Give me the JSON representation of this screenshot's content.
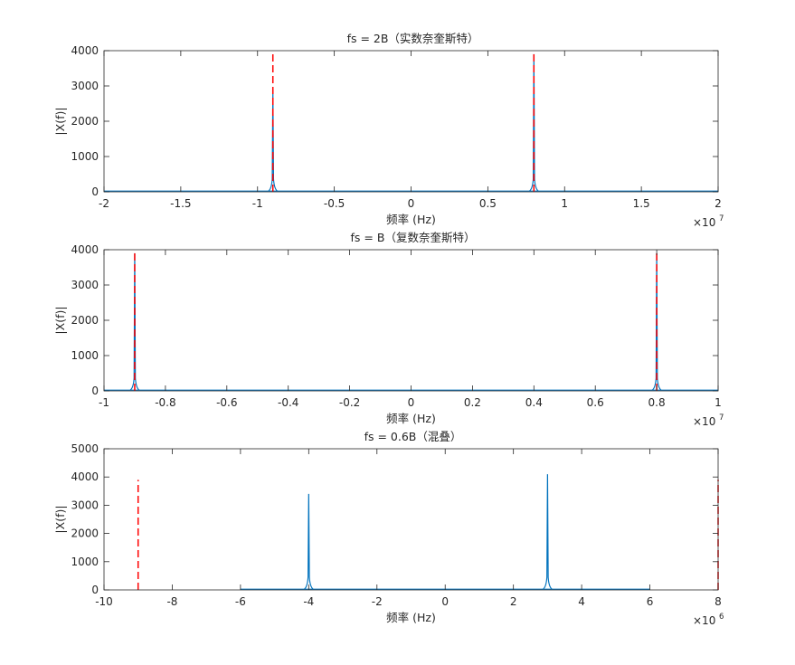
{
  "chart_data": [
    {
      "type": "line",
      "title": "fs = 2B（实数奈奎斯特）",
      "xlabel": "频率 (Hz)",
      "ylabel": "|X(f)|",
      "xlim": [
        -2,
        2
      ],
      "ylim": [
        0,
        4000
      ],
      "x_multiplier_base": "×10",
      "x_multiplier_exp": "7",
      "xticks": [
        -2,
        -1.5,
        -1,
        -0.5,
        0,
        0.5,
        1,
        1.5,
        2
      ],
      "xtick_labels": [
        "-2",
        "-1.5",
        "-1",
        "-0.5",
        "0",
        "0.5",
        "1",
        "1.5",
        "2"
      ],
      "yticks": [
        0,
        1000,
        2000,
        3000,
        4000
      ],
      "ytick_labels": [
        "0",
        "1000",
        "2000",
        "3000",
        "4000"
      ],
      "spectrum_range": [
        -2,
        2
      ],
      "spectrum_peaks": [
        {
          "x": -0.9,
          "y": 2900
        },
        {
          "x": 0.8,
          "y": 3900
        }
      ],
      "reference_lines": [
        {
          "x": -0.9,
          "y": 4000
        },
        {
          "x": 0.8,
          "y": 4000
        }
      ],
      "grid": false,
      "colors": {
        "spectrum": "#0072BD",
        "reference": "#ff0000",
        "axes": "#262626"
      }
    },
    {
      "type": "line",
      "title": "fs = B（复数奈奎斯特）",
      "xlabel": "频率 (Hz)",
      "ylabel": "|X(f)|",
      "xlim": [
        -1,
        1
      ],
      "ylim": [
        0,
        4000
      ],
      "x_multiplier_base": "×10",
      "x_multiplier_exp": "7",
      "xticks": [
        -1,
        -0.8,
        -0.6,
        -0.4,
        -0.2,
        0,
        0.2,
        0.4,
        0.6,
        0.8,
        1
      ],
      "xtick_labels": [
        "-1",
        "-0.8",
        "-0.6",
        "-0.4",
        "-0.2",
        "0",
        "0.2",
        "0.4",
        "0.6",
        "0.8",
        "1"
      ],
      "yticks": [
        0,
        1000,
        2000,
        3000,
        4000
      ],
      "ytick_labels": [
        "0",
        "1000",
        "2000",
        "3000",
        "4000"
      ],
      "spectrum_range": [
        -1,
        1
      ],
      "spectrum_peaks": [
        {
          "x": -0.9,
          "y": 3900
        },
        {
          "x": 0.8,
          "y": 3900
        }
      ],
      "reference_lines": [
        {
          "x": -0.9,
          "y": 3900
        },
        {
          "x": 0.8,
          "y": 4000
        }
      ],
      "grid": false,
      "colors": {
        "spectrum": "#0072BD",
        "reference": "#ff0000",
        "axes": "#262626"
      }
    },
    {
      "type": "line",
      "title": "fs = 0.6B（混叠）",
      "xlabel": "频率 (Hz)",
      "ylabel": "|X(f)|",
      "xlim": [
        -10,
        8
      ],
      "ylim": [
        0,
        5000
      ],
      "x_multiplier_base": "×10",
      "x_multiplier_exp": "6",
      "xticks": [
        -10,
        -8,
        -6,
        -4,
        -2,
        0,
        2,
        4,
        6,
        8
      ],
      "xtick_labels": [
        "-10",
        "-8",
        "-6",
        "-4",
        "-2",
        "0",
        "2",
        "4",
        "6",
        "8"
      ],
      "yticks": [
        0,
        1000,
        2000,
        3000,
        4000,
        5000
      ],
      "ytick_labels": [
        "0",
        "1000",
        "2000",
        "3000",
        "4000",
        "5000"
      ],
      "spectrum_range": [
        -6,
        6
      ],
      "spectrum_peaks": [
        {
          "x": -4,
          "y": 3400
        },
        {
          "x": 3,
          "y": 4100
        }
      ],
      "reference_lines": [
        {
          "x": -9,
          "y": 3900
        },
        {
          "x": 8,
          "y": 3900
        }
      ],
      "grid": false,
      "colors": {
        "spectrum": "#0072BD",
        "reference": "#ff0000",
        "axes": "#262626"
      }
    }
  ]
}
